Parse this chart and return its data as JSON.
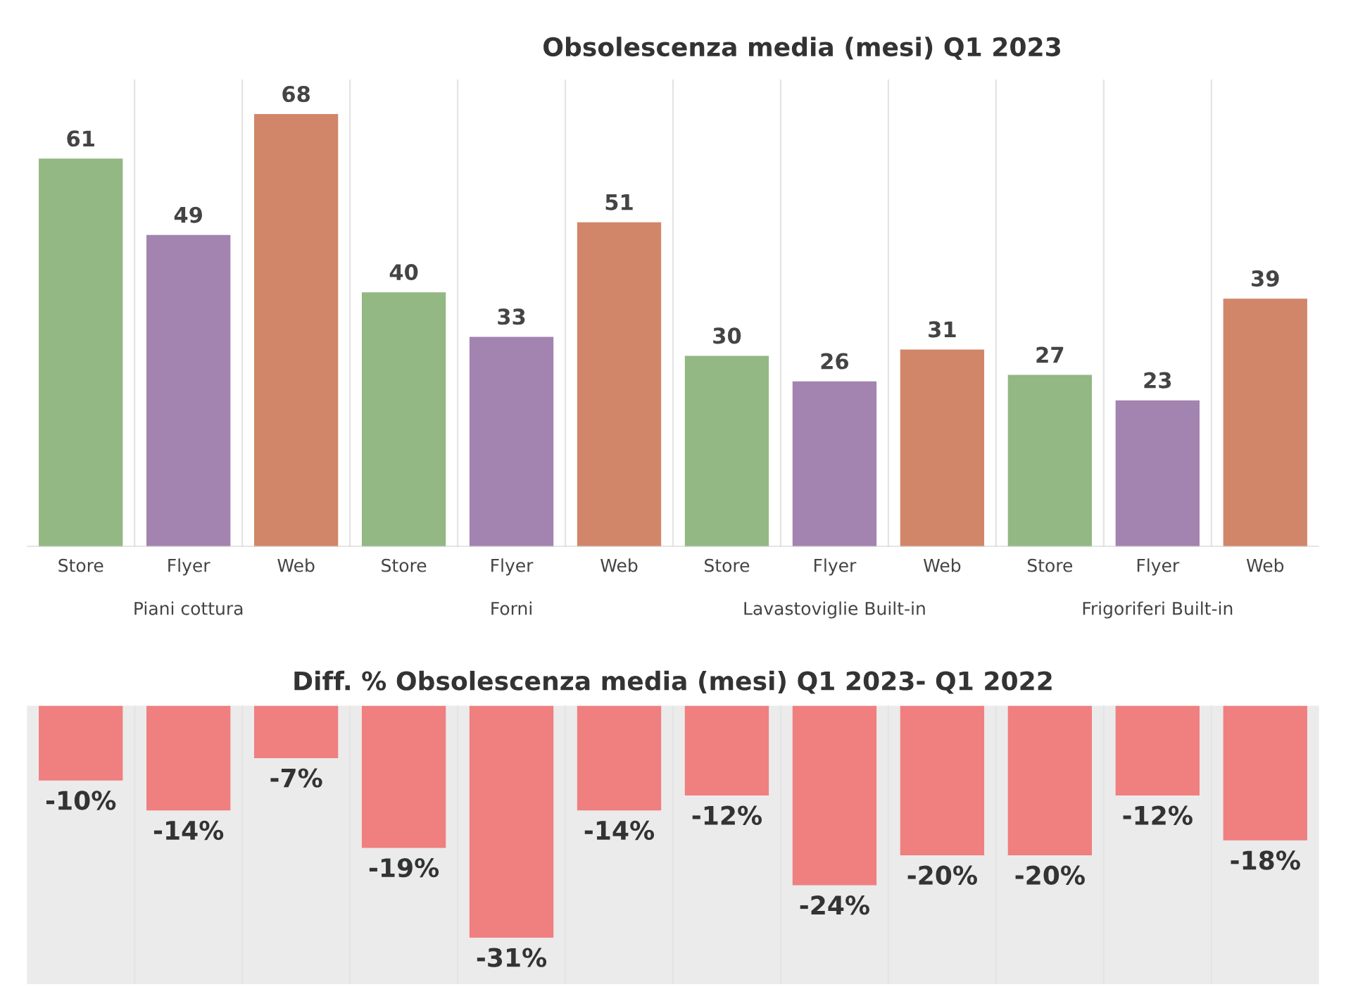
{
  "chart_data": [
    {
      "type": "bar",
      "title": "Obsolescenza media (mesi) Q1 2023",
      "categories": [
        "Store",
        "Flyer",
        "Web",
        "Store",
        "Flyer",
        "Web",
        "Store",
        "Flyer",
        "Web",
        "Store",
        "Flyer",
        "Web"
      ],
      "values": [
        61,
        49,
        68,
        40,
        33,
        51,
        30,
        26,
        31,
        27,
        23,
        39
      ],
      "colors": [
        "#93b883",
        "#a383b0",
        "#d1866a",
        "#93b883",
        "#a383b0",
        "#d1866a",
        "#93b883",
        "#a383b0",
        "#d1866a",
        "#93b883",
        "#a383b0",
        "#d1866a"
      ],
      "annotations": [
        "Piani cottura",
        "Forni",
        "Lavastoviglie Built-in",
        "Frigoriferi Built-in"
      ],
      "data_labels": true
    },
    {
      "type": "bar",
      "title": "Diff. % Obsolescenza media (mesi) Q1 2023- Q1 2022",
      "categories": [
        null,
        null,
        null,
        null,
        null,
        null,
        null,
        null,
        null,
        null,
        null,
        null
      ],
      "values": [
        -10,
        -14,
        -7,
        -19,
        -31,
        -14,
        -12,
        -24,
        -20,
        -20,
        -12,
        -18
      ],
      "color": "#f07f7f",
      "value_labels": [
        "-10%",
        "-14%",
        "-7%",
        "-19%",
        "-31%",
        "-14%",
        "-12%",
        "-24%",
        "-20%",
        "-20%",
        "-12%",
        "-18%"
      ]
    }
  ]
}
